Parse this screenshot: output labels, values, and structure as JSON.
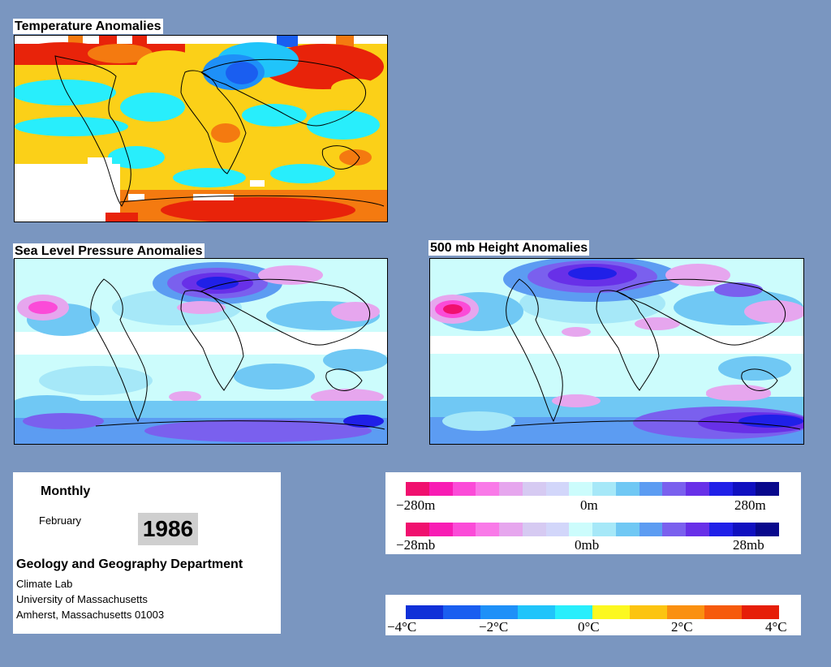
{
  "panels": {
    "temperature": {
      "title": "Temperature Anomalies"
    },
    "slp": {
      "title": "Sea Level Pressure Anomalies"
    },
    "height": {
      "title": "500 mb Height Anomalies"
    }
  },
  "info": {
    "frequency": "Monthly",
    "month": "February",
    "year": "1986",
    "department": "Geology and Geography Department",
    "lab": "Climate Lab",
    "university": "University of Massachusetts",
    "address": "Amherst, Massachusetts 01003"
  },
  "legend_height": {
    "colors": [
      "#f0106e",
      "#f81cb4",
      "#fb4bd8",
      "#f97ae8",
      "#e6a6ee",
      "#d6caf2",
      "#d2d6fa",
      "#ccfcfc",
      "#a6e8f8",
      "#70c8f4",
      "#5c9cf2",
      "#7a60ee",
      "#6830e8",
      "#2020e8",
      "#1010c0",
      "#08088c"
    ],
    "ticks": [
      "−280m",
      "0m",
      "280m"
    ]
  },
  "legend_pressure": {
    "colors": [
      "#f0106e",
      "#f81cb4",
      "#fb4bd8",
      "#f97ae8",
      "#e6a6ee",
      "#d6caf2",
      "#d2d6fa",
      "#ccfcfc",
      "#a6e8f8",
      "#70c8f4",
      "#5c9cf2",
      "#7a60ee",
      "#6830e8",
      "#2020e8",
      "#1010c0",
      "#08088c"
    ],
    "ticks": [
      "−28mb",
      "0mb",
      "28mb"
    ]
  },
  "legend_temperature": {
    "colors": [
      "#1030d8",
      "#1a5ef0",
      "#1e90f8",
      "#20c4fa",
      "#28eefc",
      "#fcf820",
      "#fcc410",
      "#fa9010",
      "#f65a0c",
      "#e61e08"
    ],
    "ticks": [
      "−4°C",
      "−2°C",
      "0°C",
      "2°C",
      "4°C"
    ]
  }
}
